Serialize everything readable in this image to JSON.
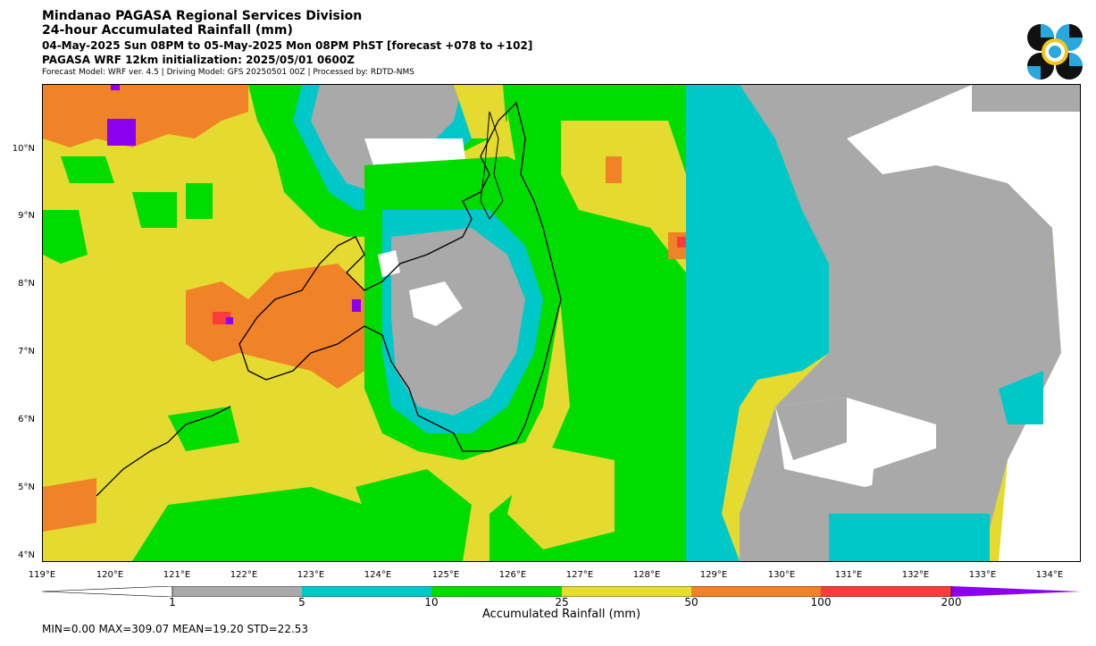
{
  "header": {
    "title": "Mindanao PAGASA Regional Services Division",
    "subtitle": "24-hour Accumulated Rainfall (mm)",
    "period": "04-May-2025 Sun 08PM to 05-May-2025 Mon 08PM PhST [forecast +078 to +102]",
    "init": "PAGASA WRF 12km initialization: 2025/05/01 0600Z",
    "model_info": "Forecast Model: WRF ver. 4.5 | Driving Model: GFS 20250501 00Z | Processed by: RDTD-NMS"
  },
  "logo": {
    "icon": "pagasa-logo-icon"
  },
  "map": {
    "lat_labels": [
      "10°N",
      "9°N",
      "8°N",
      "7°N",
      "6°N",
      "5°N",
      "4°N"
    ],
    "lon_labels": [
      "119°E",
      "120°E",
      "121°E",
      "122°E",
      "123°E",
      "124°E",
      "125°E",
      "126°E",
      "127°E",
      "128°E",
      "129°E",
      "130°E",
      "131°E",
      "132°E",
      "133°E",
      "134°E"
    ],
    "lat_range": [
      3.9,
      11.0
    ],
    "lon_range": [
      119.0,
      134.45
    ]
  },
  "colorbar": {
    "title": "Accumulated Rainfall (mm)",
    "ticks": [
      "1",
      "5",
      "10",
      "25",
      "50",
      "100",
      "200"
    ],
    "colors": [
      "#ffffff",
      "#a9a9a9",
      "#00c8c8",
      "#00dc00",
      "#e6dc32",
      "#f08228",
      "#fa3c3c",
      "#8c00f0"
    ]
  },
  "stats": {
    "text": "MIN=0.00   MAX=309.07   MEAN=19.20   STD=22.53"
  }
}
